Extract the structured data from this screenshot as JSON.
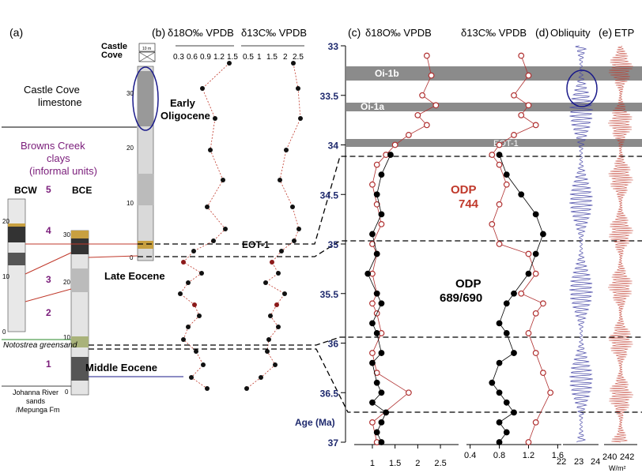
{
  "panel_labels": {
    "a": "(a)",
    "b": "(b)",
    "c": "(c)",
    "d": "(d)",
    "e": "(e)"
  },
  "headers": {
    "b_d18o": "δ18O‰ VPDB",
    "b_d13c": "δ13C‰ VPDB",
    "c_d18o": "δ18O‰ VPDB",
    "c_d13c": "δ13C‰ VPDB",
    "d": "Obliquity",
    "e": "ETP"
  },
  "stratigraphy": {
    "castle_cove_title": [
      "Castle",
      "Cove"
    ],
    "scale_box_top": "10 m",
    "scale_box_bottom": "10 m",
    "castle_cove_limestone": [
      "Castle Cove",
      "limestone"
    ],
    "browns_creek": [
      "Browns Creek",
      "clays",
      "(informal units)"
    ],
    "bcw": "BCW",
    "bce": "BCE",
    "unit_numbers": [
      "5",
      "4",
      "3",
      "2",
      "1"
    ],
    "notostrea": "Notostrea greensand",
    "johanna": [
      "Johanna River",
      "sands",
      "/Mepunga Fm"
    ],
    "bcw_ticks": [
      "20",
      "10",
      "0"
    ],
    "bce_ticks": [
      "30",
      "20",
      "10",
      "0"
    ],
    "cc_ticks": [
      "30",
      "20",
      "10",
      "0"
    ],
    "early_oligocene": [
      "Early",
      "Oligocene"
    ],
    "late_eocene": "Late Eocene",
    "middle_eocene": "Middle Eocene",
    "eot1": "EOT-1"
  },
  "panel_b": {
    "d18o_ticks": [
      "0.3",
      "0.6",
      "0.9",
      "1.2",
      "1.5"
    ],
    "d13c_ticks": [
      "0.5",
      "1",
      "1.5",
      "2",
      "2.5"
    ]
  },
  "panel_c": {
    "age_label": "Age (Ma)",
    "age_ticks": [
      "33",
      "33.5",
      "34",
      "34.5",
      "35",
      "35.5",
      "36",
      "36.5",
      "37"
    ],
    "d18o_ticks": [
      "1",
      "1.5",
      "2",
      "2.5"
    ],
    "d13c_ticks": [
      "0.4",
      "0.8",
      "1.2",
      "1.6"
    ],
    "events": [
      "Oi-1b",
      "Oi-1a",
      "EOT-1"
    ],
    "odp744": [
      "ODP",
      "744"
    ],
    "odp689": [
      "ODP",
      "689/690"
    ]
  },
  "panel_d": {
    "ticks": [
      "22",
      "23",
      "24"
    ]
  },
  "panel_e": {
    "ticks": [
      "240",
      "242"
    ],
    "unit": "W/m²"
  },
  "chart_data": [
    {
      "type": "scatter",
      "title": "",
      "xlabel": "δ18O‰ VPDB",
      "ylabel": "Age (Ma)",
      "xlim": [
        0.6,
        2.9
      ],
      "ylim": [
        37,
        33
      ],
      "series": [
        {
          "name": "ODP 744",
          "x": [
            2.2,
            2.3,
            2.1,
            2.4,
            2.0,
            2.2,
            1.8,
            1.5,
            1.3,
            1.1,
            1.0,
            1.1,
            1.2,
            1.0,
            1.1,
            1.0,
            1.1,
            1.0,
            1.1,
            1.2,
            1.0,
            1.1,
            1.8,
            1.0,
            1.1
          ],
          "y": [
            33.1,
            33.3,
            33.5,
            33.6,
            33.7,
            33.8,
            33.9,
            34.0,
            34.1,
            34.2,
            34.4,
            34.6,
            34.8,
            35.0,
            35.1,
            35.3,
            35.5,
            35.6,
            35.7,
            35.9,
            36.1,
            36.3,
            36.5,
            36.8,
            37.0
          ]
        },
        {
          "name": "ODP 689/690",
          "x": [
            1.4,
            1.2,
            1.1,
            1.2,
            1.0,
            1.1,
            0.9,
            1.1,
            1.2,
            1.0,
            1.1,
            1.2,
            1.0,
            1.1,
            1.2,
            1.0,
            1.3,
            1.2,
            1.1,
            1.2
          ],
          "y": [
            34.1,
            34.3,
            34.5,
            34.7,
            34.9,
            35.1,
            35.3,
            35.5,
            35.6,
            35.8,
            35.9,
            36.1,
            36.2,
            36.4,
            36.5,
            36.6,
            36.7,
            36.8,
            36.9,
            37.0
          ]
        }
      ]
    },
    {
      "type": "scatter",
      "title": "",
      "xlabel": "δ13C‰ VPDB",
      "ylabel": "Age (Ma)",
      "xlim": [
        0.35,
        1.65
      ],
      "ylim": [
        37,
        33
      ],
      "series": [
        {
          "name": "ODP 744",
          "x": [
            1.1,
            1.2,
            1.0,
            1.2,
            1.1,
            1.3,
            1.0,
            0.8,
            0.7,
            0.8,
            0.9,
            0.8,
            0.7,
            0.8,
            1.2,
            1.3,
            1.1,
            1.4,
            1.3,
            1.2,
            1.3,
            1.4,
            1.5,
            1.3,
            1.2
          ],
          "y": [
            33.1,
            33.3,
            33.5,
            33.6,
            33.7,
            33.8,
            33.9,
            34.0,
            34.1,
            34.2,
            34.4,
            34.6,
            34.8,
            35.0,
            35.1,
            35.3,
            35.5,
            35.6,
            35.7,
            35.9,
            36.1,
            36.3,
            36.5,
            36.8,
            37.0
          ]
        },
        {
          "name": "ODP 689/690",
          "x": [
            0.8,
            0.9,
            1.1,
            1.3,
            1.4,
            1.3,
            1.2,
            1.0,
            0.9,
            0.8,
            0.9,
            1.0,
            0.8,
            0.7,
            0.8,
            0.9,
            1.0,
            0.8,
            0.9,
            0.8
          ],
          "y": [
            34.1,
            34.3,
            34.5,
            34.7,
            34.9,
            35.1,
            35.3,
            35.5,
            35.6,
            35.8,
            35.9,
            36.1,
            36.2,
            36.4,
            36.5,
            36.6,
            36.7,
            36.8,
            36.9,
            37.0
          ]
        }
      ]
    }
  ]
}
